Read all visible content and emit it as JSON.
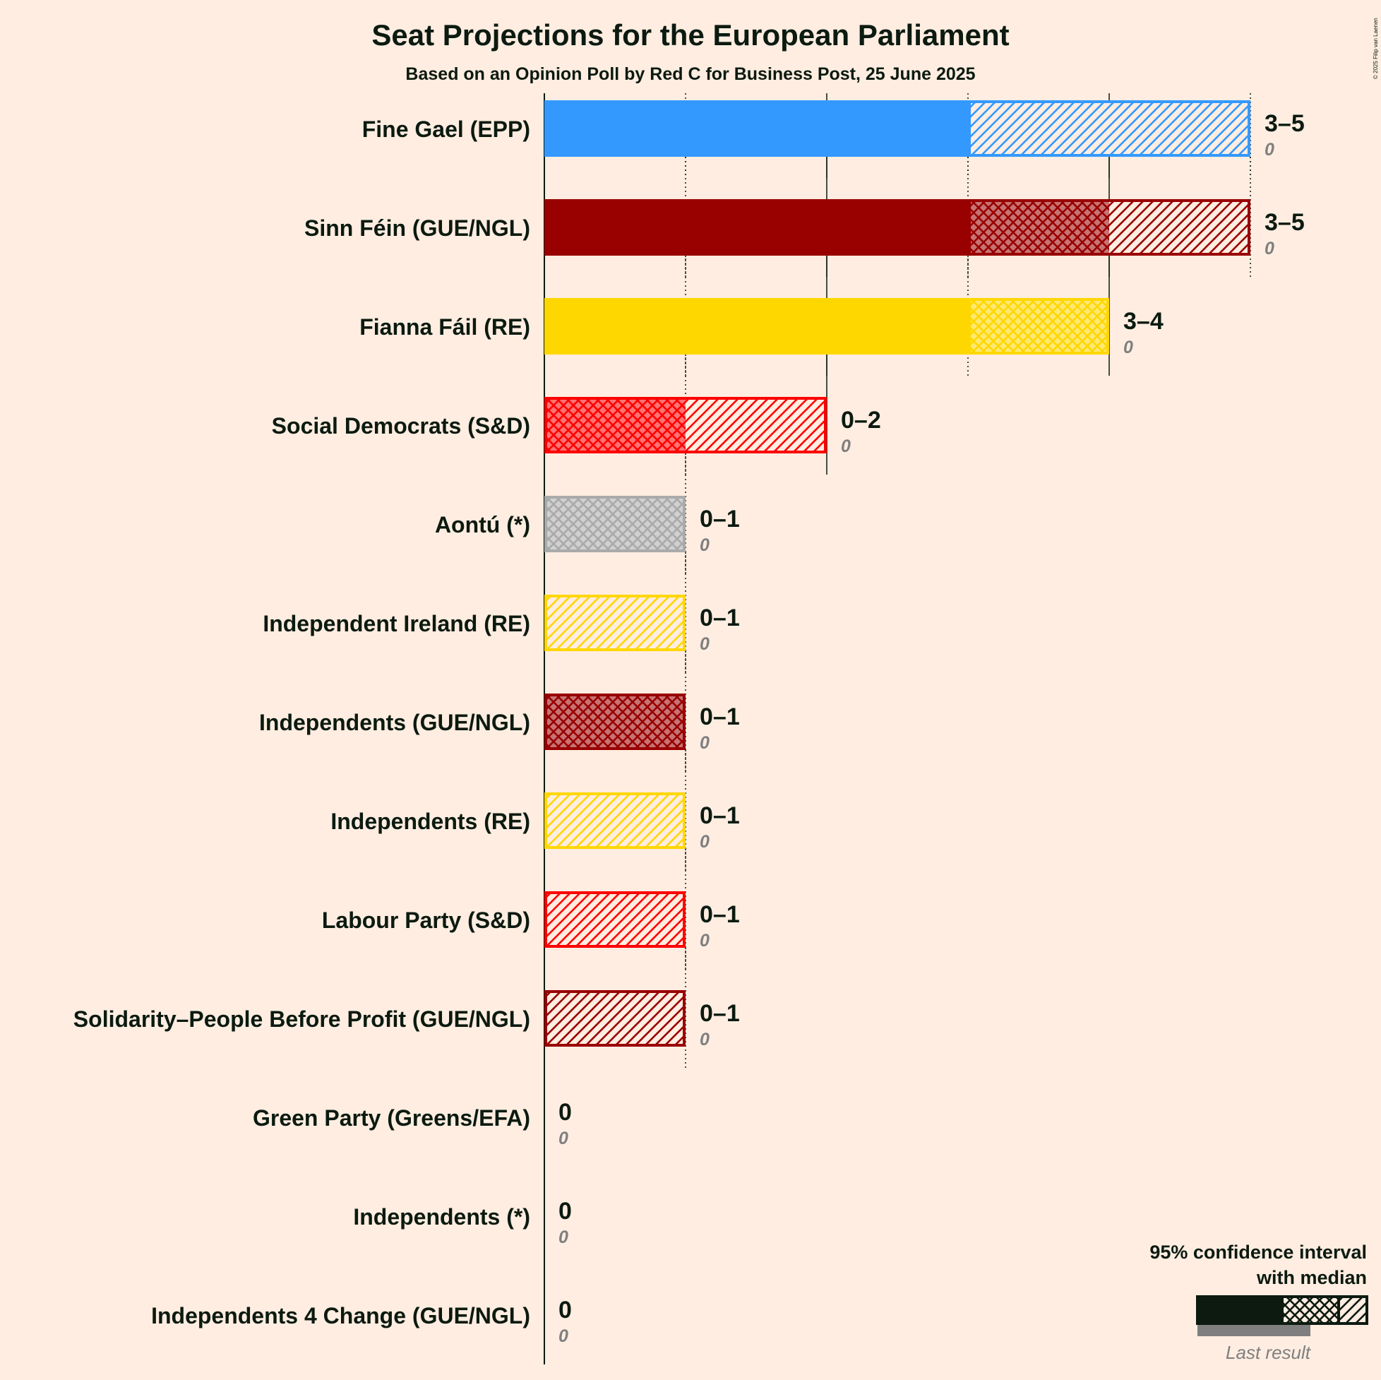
{
  "chart_data": {
    "type": "bar",
    "orientation": "horizontal",
    "title": "Seat Projections for the European Parliament",
    "subtitle": "Based on an Opinion Poll by Red C for Business Post, 25 June 2025",
    "copyright": "© 2025 Filip van Laenen",
    "xlim": [
      0,
      5
    ],
    "series_meaning": "95% confidence interval with median; last result shown below",
    "parties": [
      {
        "name": "Fine Gael (EPP)",
        "color": "#3399FF",
        "low": 3,
        "median": 3,
        "high": 5,
        "range_label": "3–5",
        "last_label": "0",
        "last": 0
      },
      {
        "name": "Sinn Féin (GUE/NGL)",
        "color": "#990000",
        "low": 3,
        "median": 4,
        "high": 5,
        "range_label": "3–5",
        "last_label": "0",
        "last": 0
      },
      {
        "name": "Fianna Fáil (RE)",
        "color": "#FFD700",
        "low": 3,
        "median": 4,
        "high": 4,
        "range_label": "3–4",
        "last_label": "0",
        "last": 0
      },
      {
        "name": "Social Democrats (S&D)",
        "color": "#FF0000",
        "low": 0,
        "median": 1,
        "high": 2,
        "range_label": "0–2",
        "last_label": "0",
        "last": 0
      },
      {
        "name": "Aontú (*)",
        "color": "#AAAAAA",
        "low": 0,
        "median": 1,
        "high": 1,
        "range_label": "0–1",
        "last_label": "0",
        "last": 0
      },
      {
        "name": "Independent Ireland (RE)",
        "color": "#FFD700",
        "low": 0,
        "median": 0,
        "high": 1,
        "range_label": "0–1",
        "last_label": "0",
        "last": 0
      },
      {
        "name": "Independents (GUE/NGL)",
        "color": "#990000",
        "low": 0,
        "median": 1,
        "high": 1,
        "range_label": "0–1",
        "last_label": "0",
        "last": 0
      },
      {
        "name": "Independents (RE)",
        "color": "#FFD700",
        "low": 0,
        "median": 0,
        "high": 1,
        "range_label": "0–1",
        "last_label": "0",
        "last": 0
      },
      {
        "name": "Labour Party (S&D)",
        "color": "#FF0000",
        "low": 0,
        "median": 0,
        "high": 1,
        "range_label": "0–1",
        "last_label": "0",
        "last": 0
      },
      {
        "name": "Solidarity–People Before Profit (GUE/NGL)",
        "color": "#990000",
        "low": 0,
        "median": 0,
        "high": 1,
        "range_label": "0–1",
        "last_label": "0",
        "last": 0
      },
      {
        "name": "Green Party (Greens/EFA)",
        "color": "#00AA00",
        "low": 0,
        "median": 0,
        "high": 0,
        "range_label": "0",
        "last_label": "0",
        "last": 0
      },
      {
        "name": "Independents (*)",
        "color": "#AAAAAA",
        "low": 0,
        "median": 0,
        "high": 0,
        "range_label": "0",
        "last_label": "0",
        "last": 0
      },
      {
        "name": "Independents 4 Change (GUE/NGL)",
        "color": "#990000",
        "low": 0,
        "median": 0,
        "high": 0,
        "range_label": "0",
        "last_label": "0",
        "last": 0
      }
    ],
    "legend": {
      "line1": "95% confidence interval",
      "line2": "with median",
      "last_result": "Last result",
      "position": "bottom-right"
    }
  }
}
